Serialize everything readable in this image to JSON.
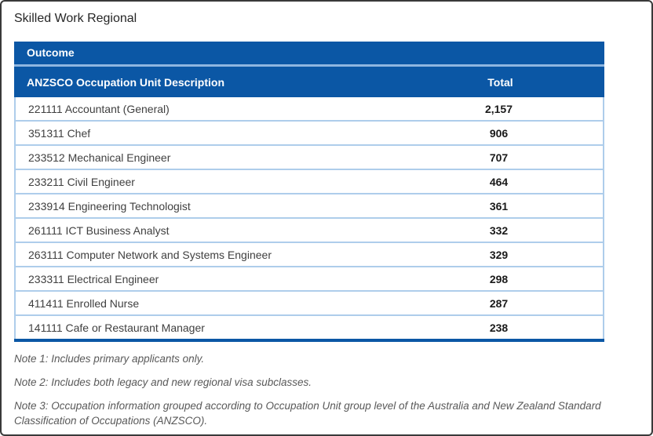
{
  "page": {
    "title": "Skilled Work Regional"
  },
  "table": {
    "caption": "Outcome",
    "columns": [
      "ANZSCO Occupation Unit Description",
      "Total"
    ],
    "rows": [
      {
        "description": "221111 Accountant (General)",
        "total": "2,157"
      },
      {
        "description": "351311 Chef",
        "total": "906"
      },
      {
        "description": "233512 Mechanical Engineer",
        "total": "707"
      },
      {
        "description": "233211 Civil Engineer",
        "total": "464"
      },
      {
        "description": "233914 Engineering Technologist",
        "total": "361"
      },
      {
        "description": "261111 ICT Business Analyst",
        "total": "332"
      },
      {
        "description": "263111 Computer Network and Systems Engineer",
        "total": "329"
      },
      {
        "description": "233311 Electrical Engineer",
        "total": "298"
      },
      {
        "description": "411411 Enrolled Nurse",
        "total": "287"
      },
      {
        "description": "141111 Cafe or Restaurant Manager",
        "total": "238"
      }
    ]
  },
  "notes": [
    "Note 1: Includes primary applicants only.",
    "Note 2: Includes both legacy and new regional visa subclasses.",
    "Note 3: Occupation information grouped according to Occupation Unit group level of the Australia and New Zealand Standard Classification of Occupations (ANZSCO)."
  ],
  "colors": {
    "header_blue": "#0B57A5",
    "header_separator_blue": "#8FB6E0",
    "row_border_blue": "#AECDEB",
    "body_text": "#404040",
    "total_text": "#1a1a1a",
    "note_text": "#595959"
  }
}
